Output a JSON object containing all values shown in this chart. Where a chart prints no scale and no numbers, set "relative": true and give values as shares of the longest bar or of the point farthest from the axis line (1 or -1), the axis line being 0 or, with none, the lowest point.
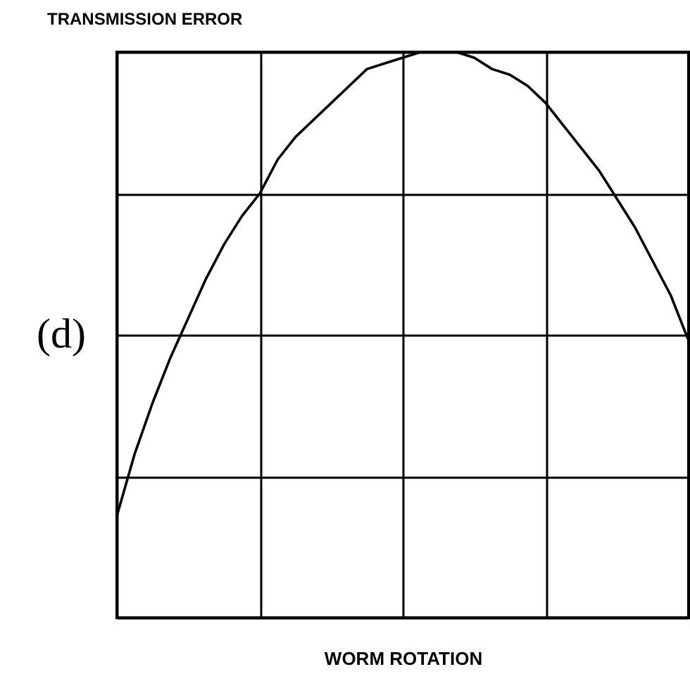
{
  "chart_data": {
    "type": "line",
    "ylabel": "TRANSMISSION ERROR",
    "xlabel": "WORM ROTATION",
    "annotations": [
      "(d)"
    ],
    "categories": [
      null,
      null,
      null,
      null,
      null,
      null,
      null,
      null,
      null,
      null,
      null,
      null,
      null,
      null,
      null,
      null,
      null,
      null,
      null,
      null,
      null,
      null,
      null,
      null,
      null,
      null,
      null,
      null,
      null,
      null,
      null,
      null,
      null
    ],
    "values": [
      0.18,
      0.29,
      0.38,
      0.46,
      0.53,
      0.6,
      0.66,
      0.71,
      0.75,
      0.81,
      0.85,
      0.88,
      0.91,
      0.94,
      0.97,
      0.98,
      0.99,
      1.0,
      1.0,
      1.0,
      0.99,
      0.97,
      0.96,
      0.94,
      0.91,
      0.87,
      0.83,
      0.79,
      0.74,
      0.69,
      0.63,
      0.57,
      0.49
    ],
    "color": "#000000",
    "relative": true,
    "grid": true
  }
}
